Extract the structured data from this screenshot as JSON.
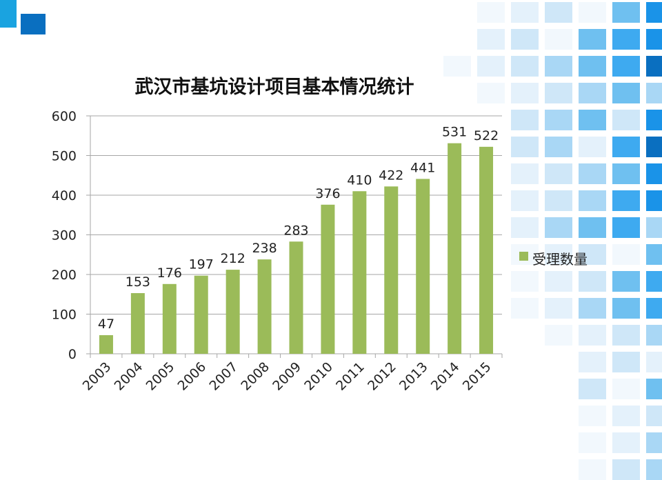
{
  "colors": {
    "bar": "#9bbb59",
    "accent": "#1aa3e0",
    "accent_dark": "#0a6fc0",
    "gridline": "#a6a6a6"
  },
  "chart_data": {
    "type": "bar",
    "title": "武汉市基坑设计项目基本情况统计",
    "xlabel": "",
    "ylabel": "",
    "categories": [
      "2003",
      "2004",
      "2005",
      "2006",
      "2007",
      "2008",
      "2009",
      "2010",
      "2011",
      "2012",
      "2013",
      "2014",
      "2015"
    ],
    "series": [
      {
        "name": "受理数量",
        "values": [
          47,
          153,
          176,
          197,
          212,
          238,
          283,
          376,
          410,
          422,
          441,
          531,
          522
        ]
      }
    ],
    "ylim": [
      0,
      600
    ],
    "yticks": [
      0,
      100,
      200,
      300,
      400,
      500,
      600
    ],
    "grid": true,
    "legend": "right"
  }
}
